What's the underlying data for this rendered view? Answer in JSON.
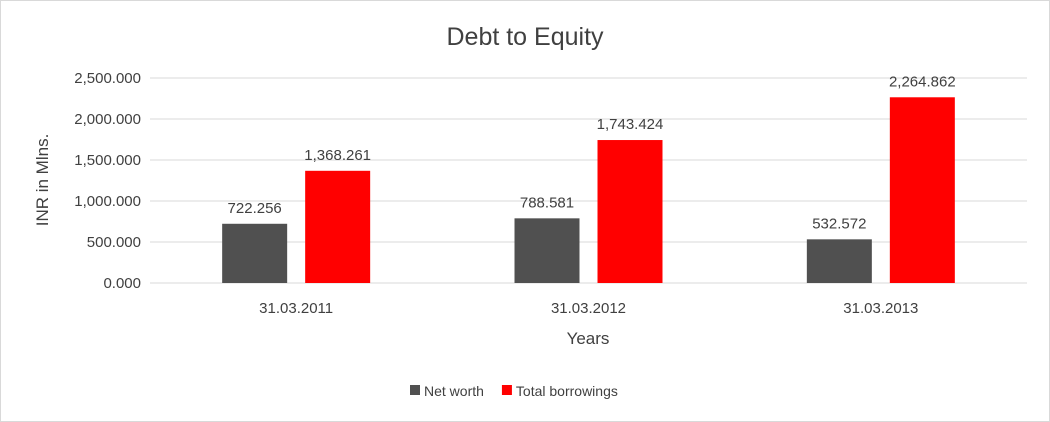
{
  "chart_data": {
    "type": "bar",
    "title": "Debt to Equity",
    "xlabel": "Years",
    "ylabel": "INR in Mlns.",
    "categories": [
      "31.03.2011",
      "31.03.2012",
      "31.03.2013"
    ],
    "series": [
      {
        "name": "Net worth",
        "color": "#505050",
        "values": [
          722.256,
          788.581,
          532.572
        ],
        "labels": [
          "722.256",
          "788.581",
          "532.572"
        ]
      },
      {
        "name": "Total borrowings",
        "color": "#ff0000",
        "values": [
          1368.261,
          1743.424,
          2264.862
        ],
        "labels": [
          "1,368.261",
          "1,743.424",
          "2,264.862"
        ]
      }
    ],
    "ylim": [
      0,
      2500
    ],
    "yticks": [
      0,
      500,
      1000,
      1500,
      2000,
      2500
    ],
    "ytick_labels": [
      "0.000",
      "500.000",
      "1,000.000",
      "1,500.000",
      "2,000.000",
      "2,500.000"
    ],
    "grid": true,
    "legend_position": "bottom"
  }
}
